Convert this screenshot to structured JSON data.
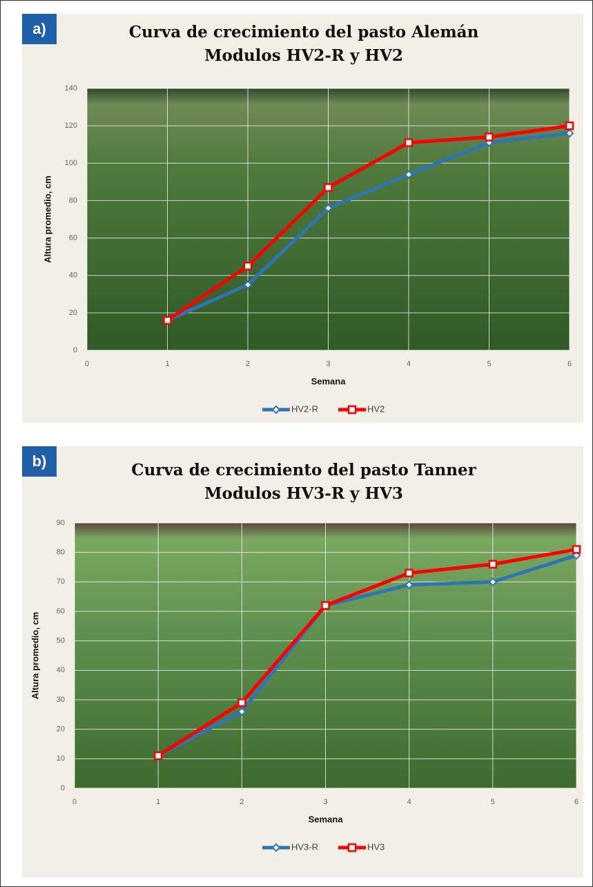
{
  "chart_data": [
    {
      "type": "line",
      "panel_label": "a)",
      "title": "Curva de crecimiento del pasto Alemán",
      "subtitle": "Modulos HV2-R y HV2",
      "x_label": "Semana",
      "y_label": "Altura promedio, cm",
      "x": [
        1,
        2,
        3,
        4,
        5,
        6
      ],
      "series": [
        {
          "name": "HV2-R",
          "color": "#2e75b6",
          "marker": "diamond",
          "values": [
            16,
            35,
            76,
            94,
            111,
            116
          ]
        },
        {
          "name": "HV2",
          "color": "#ff0000",
          "marker": "square",
          "values": [
            16,
            45,
            87,
            111,
            114,
            120
          ]
        }
      ],
      "xlim": [
        0,
        6
      ],
      "xticks": [
        0,
        1,
        2,
        3,
        4,
        5,
        6
      ],
      "ylim": [
        0,
        140
      ],
      "yticks": [
        0,
        20,
        40,
        60,
        80,
        100,
        120,
        140
      ],
      "grid": true,
      "legend": "bottom"
    },
    {
      "type": "line",
      "panel_label": "b)",
      "title": "Curva de crecimiento del pasto Tanner",
      "subtitle": "Modulos HV3-R y HV3",
      "x_label": "Semana",
      "y_label": "Altura promedio, cm",
      "x": [
        1,
        2,
        3,
        4,
        5,
        6
      ],
      "series": [
        {
          "name": "HV3-R",
          "color": "#2e75b6",
          "marker": "diamond",
          "values": [
            11,
            26,
            62,
            69,
            70,
            79
          ]
        },
        {
          "name": "HV3",
          "color": "#ff0000",
          "marker": "square",
          "values": [
            11,
            29,
            62,
            73,
            76,
            81
          ]
        }
      ],
      "xlim": [
        0,
        6
      ],
      "xticks": [
        0,
        1,
        2,
        3,
        4,
        5,
        6
      ],
      "ylim": [
        0,
        90
      ],
      "yticks": [
        0,
        10,
        20,
        30,
        40,
        50,
        60,
        70,
        80,
        90
      ],
      "grid": true,
      "legend": "bottom"
    }
  ]
}
